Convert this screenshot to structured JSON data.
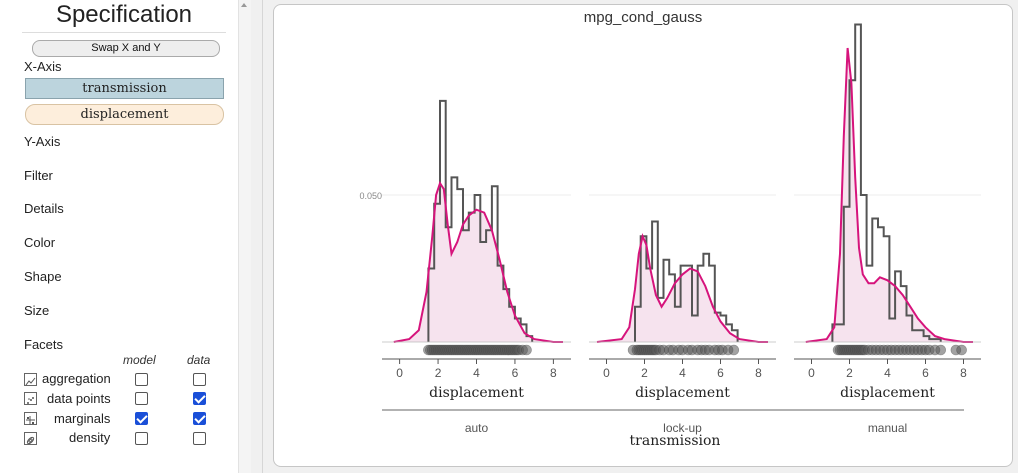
{
  "spec": {
    "title": "Specification",
    "swap_label": "Swap X and Y",
    "x_axis_label": "X-Axis",
    "x_fields": [
      "transmission",
      "displacement"
    ],
    "sections": [
      "Y-Axis",
      "Filter",
      "Details",
      "Color",
      "Shape",
      "Size",
      "Facets"
    ],
    "toggle_headers": {
      "model": "model",
      "data": "data"
    },
    "toggles": [
      {
        "label": "aggregation",
        "icon": "aggregation-icon",
        "model": false,
        "data": false
      },
      {
        "label": "data points",
        "icon": "data-points-icon",
        "model": false,
        "data": true
      },
      {
        "label": "marginals",
        "icon": "marginals-icon",
        "model": true,
        "data": true
      },
      {
        "label": "density",
        "icon": "density-icon",
        "model": false,
        "data": false
      }
    ]
  },
  "chart_data": {
    "type": "area",
    "title": "mpg_cond_gauss",
    "xlabel": "displacement",
    "facet_label": "transmission",
    "facets": [
      "auto",
      "lock-up",
      "manual"
    ],
    "x_ticks": [
      0,
      2,
      4,
      6,
      8
    ],
    "xlim": [
      -0.5,
      8.5
    ],
    "y_ticks": [
      0.05
    ],
    "ylim": [
      0,
      0.12
    ],
    "grid": true,
    "colors": {
      "density": "#d6147c",
      "density_fill": "#f6e3ee",
      "histogram": "#555555",
      "points": "#555555"
    },
    "series": [
      {
        "facet": "auto",
        "histogram": {
          "bins": [
            1.5,
            1.8,
            2.1,
            2.4,
            2.7,
            3.0,
            3.3,
            3.6,
            3.9,
            4.2,
            4.5,
            4.8,
            5.1,
            5.4,
            5.7,
            6.0,
            6.3,
            6.6,
            6.9
          ],
          "heights": [
            0.025,
            0.047,
            0.082,
            0.039,
            0.056,
            0.052,
            0.038,
            0.044,
            0.05,
            0.034,
            0.038,
            0.053,
            0.026,
            0.018,
            0.012,
            0.008,
            0.006,
            0.002
          ]
        },
        "density": {
          "x": [
            -0.3,
            0.5,
            1.0,
            1.4,
            1.7,
            1.9,
            2.1,
            2.3,
            2.5,
            2.7,
            3.0,
            3.3,
            3.6,
            4.0,
            4.4,
            4.8,
            5.2,
            5.6,
            6.0,
            6.5,
            7.0,
            8.0,
            8.5
          ],
          "y": [
            0,
            0.001,
            0.004,
            0.017,
            0.036,
            0.05,
            0.054,
            0.052,
            0.04,
            0.03,
            0.034,
            0.04,
            0.043,
            0.045,
            0.044,
            0.038,
            0.028,
            0.017,
            0.009,
            0.003,
            0.001,
            0,
            0
          ]
        },
        "points": [
          1.5,
          1.6,
          1.7,
          1.8,
          1.9,
          2.0,
          2.1,
          2.2,
          2.3,
          2.4,
          2.5,
          2.6,
          2.7,
          2.8,
          2.9,
          3.0,
          3.1,
          3.2,
          3.3,
          3.4,
          3.5,
          3.6,
          3.7,
          3.8,
          3.9,
          4.0,
          4.1,
          4.2,
          4.3,
          4.4,
          4.5,
          4.6,
          4.7,
          4.8,
          4.9,
          5.0,
          5.1,
          5.2,
          5.3,
          5.4,
          5.5,
          5.6,
          5.7,
          5.8,
          5.9,
          6.0,
          6.1,
          6.2,
          6.4,
          6.6
        ]
      },
      {
        "facet": "lock-up",
        "histogram": {
          "bins": [
            1.5,
            1.8,
            2.1,
            2.4,
            2.7,
            3.0,
            3.3,
            3.6,
            3.9,
            4.2,
            4.5,
            4.8,
            5.1,
            5.4,
            5.7,
            6.0,
            6.3,
            6.6,
            6.9
          ],
          "heights": [
            0.012,
            0.036,
            0.025,
            0.041,
            0.015,
            0.028,
            0.023,
            0.012,
            0.026,
            0.026,
            0.009,
            0.026,
            0.03,
            0.026,
            0.01,
            0.009,
            0.006,
            0.004
          ]
        },
        "density": {
          "x": [
            -0.5,
            0.8,
            1.2,
            1.5,
            1.7,
            1.9,
            2.1,
            2.3,
            2.6,
            2.9,
            3.2,
            3.6,
            4.0,
            4.4,
            4.8,
            5.2,
            5.6,
            6.0,
            6.5,
            7.0,
            8.0,
            8.5
          ],
          "y": [
            0,
            0.001,
            0.005,
            0.018,
            0.03,
            0.036,
            0.033,
            0.025,
            0.016,
            0.012,
            0.015,
            0.02,
            0.023,
            0.025,
            0.024,
            0.019,
            0.012,
            0.007,
            0.003,
            0.001,
            0,
            0
          ]
        },
        "points": [
          1.4,
          1.6,
          1.7,
          1.8,
          1.9,
          2.0,
          2.1,
          2.2,
          2.3,
          2.4,
          2.5,
          2.6,
          2.8,
          3.0,
          3.3,
          3.5,
          3.8,
          4.0,
          4.3,
          4.5,
          4.8,
          5.0,
          5.2,
          5.4,
          5.7,
          5.9,
          6.1,
          6.4,
          6.7
        ]
      },
      {
        "facet": "manual",
        "histogram": {
          "bins": [
            1.1,
            1.4,
            1.7,
            2.0,
            2.3,
            2.6,
            2.9,
            3.2,
            3.5,
            3.8,
            4.1,
            4.4,
            4.7,
            5.0,
            5.3,
            5.6,
            5.9,
            6.2,
            6.5,
            6.8
          ],
          "heights": [
            0.006,
            0.006,
            0.046,
            0.089,
            0.108,
            0.05,
            0.026,
            0.042,
            0.039,
            0.036,
            0.008,
            0.024,
            0.019,
            0.009,
            0.004,
            0.004,
            0.002,
            0.001,
            0.001
          ]
        },
        "density": {
          "x": [
            -0.3,
            0.8,
            1.2,
            1.5,
            1.7,
            1.9,
            2.1,
            2.3,
            2.5,
            2.7,
            3.0,
            3.3,
            3.6,
            4.0,
            4.4,
            4.8,
            5.2,
            5.6,
            6.0,
            6.5,
            7.0,
            8.0,
            8.5
          ],
          "y": [
            0,
            0.001,
            0.005,
            0.03,
            0.07,
            0.1,
            0.088,
            0.056,
            0.032,
            0.023,
            0.02,
            0.02,
            0.022,
            0.021,
            0.019,
            0.016,
            0.012,
            0.008,
            0.005,
            0.002,
            0.001,
            0,
            0
          ]
        },
        "points": [
          1.4,
          1.5,
          1.6,
          1.7,
          1.8,
          1.9,
          2.0,
          2.1,
          2.2,
          2.3,
          2.4,
          2.5,
          2.6,
          2.7,
          2.8,
          3.0,
          3.2,
          3.4,
          3.6,
          3.8,
          4.0,
          4.2,
          4.4,
          4.6,
          4.8,
          5.0,
          5.2,
          5.4,
          5.6,
          5.8,
          6.0,
          6.2,
          6.5,
          6.8,
          7.6,
          7.9
        ]
      }
    ]
  }
}
